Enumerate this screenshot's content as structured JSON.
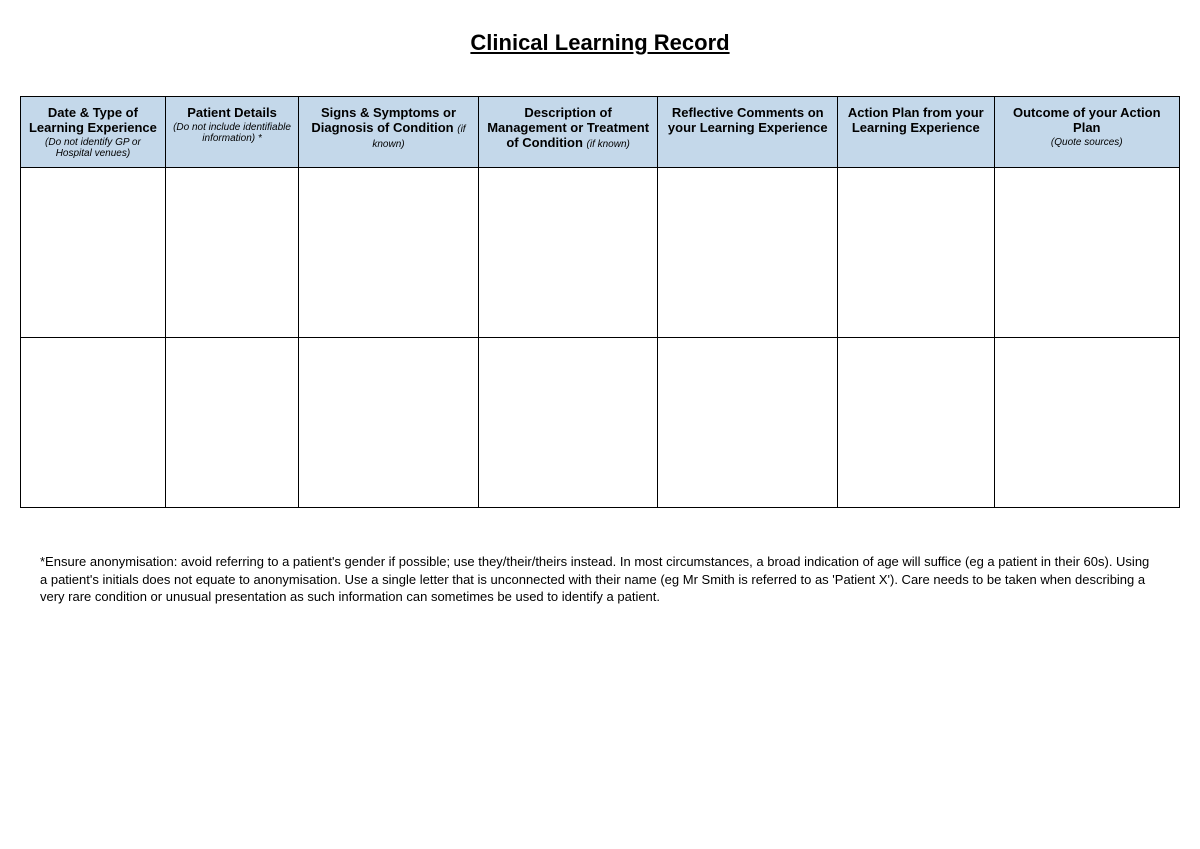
{
  "title": "Clinical Learning Record",
  "table": {
    "header_bg": "#c4d8ea",
    "border_color": "#000000",
    "column_widths_pct": [
      12.5,
      11.5,
      15.5,
      15.5,
      15.5,
      13.5,
      16.0
    ],
    "columns": [
      {
        "title": "Date & Type of Learning Experience",
        "subnote": "(Do not identify GP or Hospital venues)"
      },
      {
        "title": "Patient Details",
        "subnote": "(Do not include identifiable information) *"
      },
      {
        "title_html": "Signs & Symptoms or Diagnosis of Condition",
        "inline_note": "(if known)"
      },
      {
        "title_html": "Description of Management or Treatment of Condition",
        "inline_note": "(if known)"
      },
      {
        "title": "Reflective Comments on your Learning Experience"
      },
      {
        "title": "Action  Plan from your Learning Experience"
      },
      {
        "title": "Outcome of your Action Plan",
        "subnote": "(Quote sources)"
      }
    ],
    "rows": [
      [
        "",
        "",
        "",
        "",
        "",
        "",
        ""
      ],
      [
        "",
        "",
        "",
        "",
        "",
        "",
        ""
      ]
    ]
  },
  "footnote": "*Ensure anonymisation: avoid referring to a patient's gender if possible; use they/their/theirs instead. In most circumstances, a broad indication of age will suffice (eg a patient in their 60s). Using a patient's initials does not equate to anonymisation. Use a single letter that is unconnected with their name (eg Mr Smith is referred to as 'Patient X'). Care needs to be taken when describing a very rare condition or unusual presentation as such information can sometimes be used to identify a patient."
}
